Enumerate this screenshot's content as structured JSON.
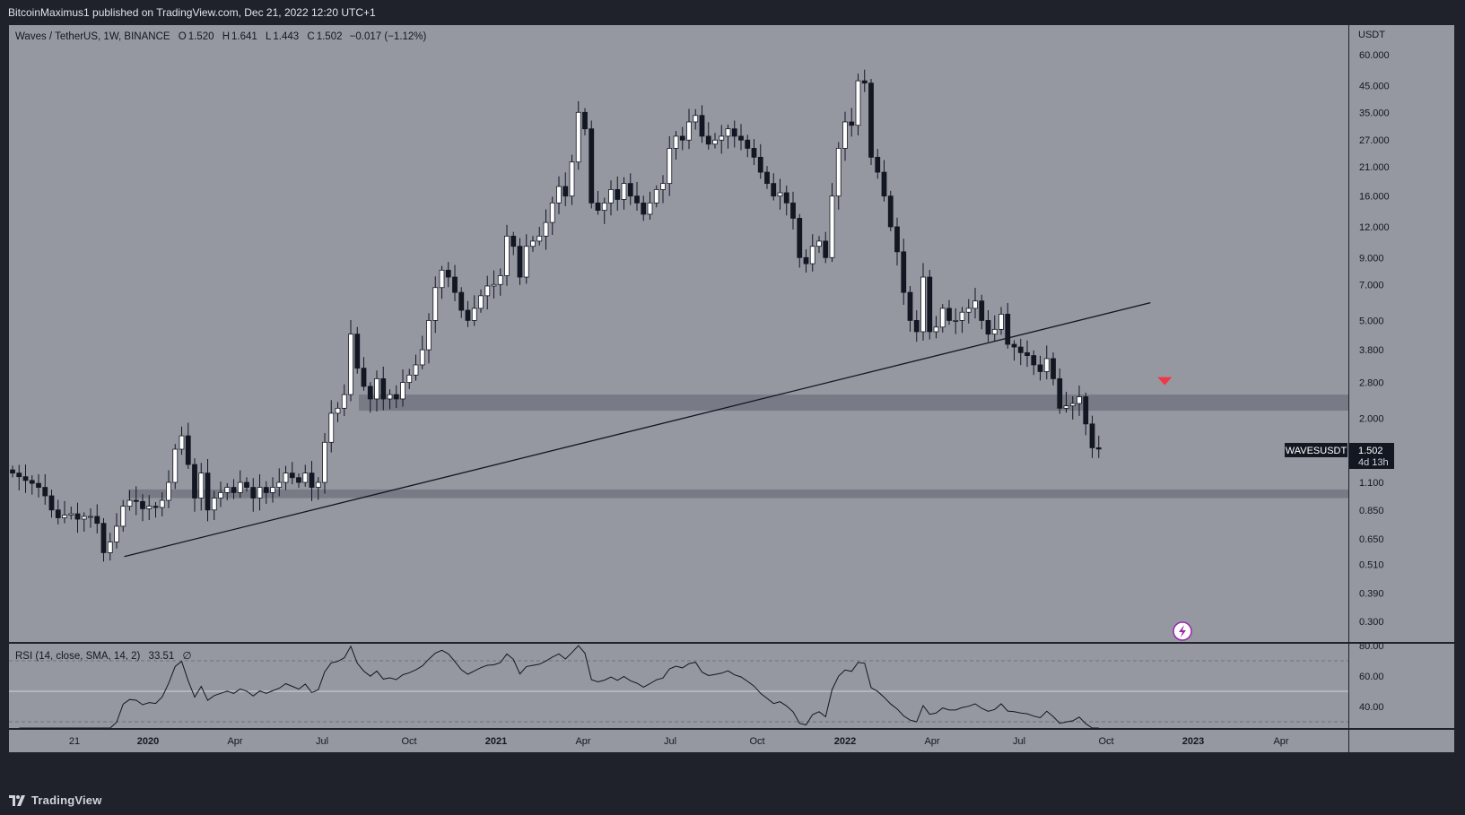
{
  "header": {
    "publish_text": "BitcoinMaximus1 published on TradingView.com, Dec 21, 2022 12:20 UTC+1"
  },
  "footer": {
    "logo_text": "TradingView"
  },
  "colors": {
    "panel_bg": "#9598a1",
    "page_bg": "#1f222b",
    "up_candle": "#ffffff",
    "down_candle": "#131722",
    "signal_arrow": "#f23645",
    "lightning_badge": "#9c27b0"
  },
  "chart_data": [
    {
      "type": "candlestick",
      "symbol_line": {
        "title": "Waves / TetherUS, 1W, BINANCE",
        "o_label": "O",
        "o_value": "1.520",
        "h_label": "H",
        "h_value": "1.641",
        "l_label": "L",
        "l_value": "1.443",
        "c_label": "C",
        "c_value": "1.502",
        "change": "−0.017 (−1.12%)"
      },
      "yscale": "log",
      "y_unit": "USDT",
      "y_ticks": [
        "60.000",
        "45.000",
        "35.000",
        "27.000",
        "21.000",
        "16.000",
        "12.000",
        "9.000",
        "7.000",
        "5.000",
        "3.800",
        "2.800",
        "2.000",
        "1.100",
        "0.850",
        "0.650",
        "0.510",
        "0.390",
        "0.300"
      ],
      "x_ticks": [
        "21",
        "2020",
        "Apr",
        "Jul",
        "Oct",
        "2021",
        "Apr",
        "Jul",
        "Oct",
        "2022",
        "Apr",
        "Jul",
        "Oct",
        "2023",
        "Apr"
      ],
      "price_label": {
        "symbol": "WAVESUSDT",
        "price": "1.502",
        "countdown": "4d 13h"
      },
      "support_zones": [
        {
          "low": 2.15,
          "high": 2.5
        },
        {
          "low": 0.95,
          "high": 1.03
        }
      ],
      "trendline": {
        "start": [
          "2019-12-07",
          0.55
        ],
        "end": [
          "2022-11-20",
          5.9
        ]
      },
      "signal": {
        "type": "bearish-arrow",
        "date": "2022-12-05",
        "price": 2.8
      },
      "weekly_closes": [
        1.2,
        1.16,
        1.12,
        1.09,
        1.05,
        0.97,
        0.85,
        0.79,
        0.81,
        0.82,
        0.78,
        0.8,
        0.8,
        0.75,
        0.57,
        0.63,
        0.73,
        0.88,
        0.93,
        0.92,
        0.86,
        0.88,
        0.87,
        0.93,
        1.1,
        1.5,
        1.7,
        1.3,
        0.95,
        1.2,
        0.85,
        0.95,
        1.0,
        1.05,
        1.0,
        1.1,
        1.05,
        0.95,
        1.05,
        1.0,
        1.05,
        1.1,
        1.2,
        1.15,
        1.1,
        1.2,
        1.05,
        1.1,
        1.6,
        2.1,
        2.2,
        2.5,
        4.4,
        3.2,
        2.7,
        2.4,
        2.9,
        2.4,
        2.5,
        2.4,
        2.8,
        3.0,
        3.3,
        3.8,
        5.0,
        6.8,
        8.0,
        7.5,
        6.5,
        5.5,
        5.0,
        5.6,
        6.3,
        6.9,
        7.0,
        7.6,
        11.0,
        10.0,
        7.5,
        10.0,
        10.5,
        11.0,
        12.5,
        15.0,
        17.5,
        16.0,
        22.0,
        35.0,
        30.0,
        15.0,
        14.0,
        15.0,
        17.0,
        15.5,
        18.0,
        16.0,
        15.0,
        13.5,
        15.0,
        17.0,
        18.0,
        25.0,
        28.0,
        27.0,
        32.0,
        34.0,
        28.0,
        26.0,
        27.0,
        28.0,
        30.0,
        28.0,
        27.0,
        25.0,
        23.0,
        20.0,
        18.0,
        16.0,
        16.5,
        15.0,
        13.0,
        9.0,
        8.5,
        10.0,
        10.5,
        9.0,
        16.0,
        25.0,
        32.0,
        31.0,
        47.0,
        46.0,
        23.0,
        20.0,
        16.0,
        12.0,
        9.5,
        6.5,
        5.0,
        4.5,
        7.5,
        4.5,
        4.7,
        5.6,
        5.0,
        5.0,
        5.4,
        5.6,
        6.0,
        5.0,
        4.4,
        4.6,
        5.3,
        4.0,
        3.9,
        3.7,
        3.6,
        3.3,
        3.1,
        3.5,
        2.9,
        2.2,
        2.25,
        2.3,
        2.45,
        1.9,
        1.52,
        1.502
      ],
      "rsi": {
        "label": "RSI (14, close, SMA, 14, 2)",
        "value": "33.51",
        "extra": "∅",
        "y_ticks": [
          "80.00",
          "60.00",
          "40.00"
        ],
        "levels": {
          "upper": 70,
          "middle": 50,
          "lower": 30
        }
      }
    }
  ]
}
